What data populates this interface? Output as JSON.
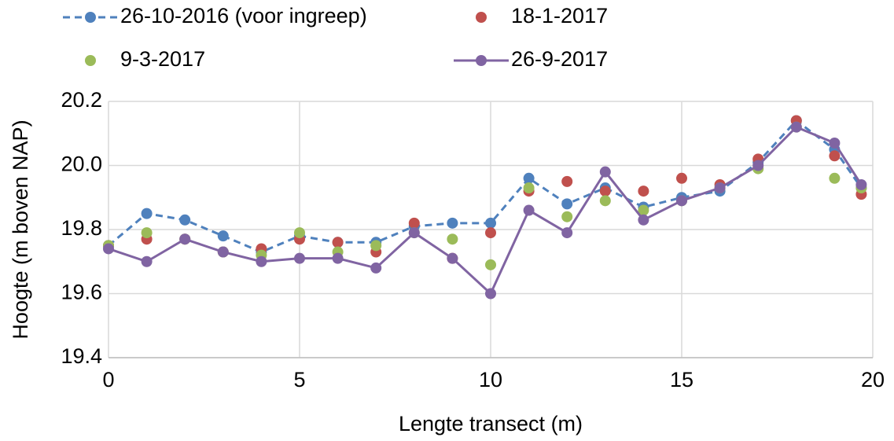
{
  "chart_data": {
    "type": "line",
    "xlabel": "Lengte transect (m)",
    "ylabel": "Hoogte (m boven NAP)",
    "x": [
      0,
      1,
      2,
      3,
      4,
      5,
      6,
      7,
      8,
      9,
      10,
      11,
      12,
      13,
      14,
      15,
      16,
      17,
      18,
      19,
      19.7
    ],
    "series": [
      {
        "name": "26-10-2016 (voor ingreep)",
        "color": "#4f81bd",
        "line": "dashed",
        "marker": true,
        "values": [
          19.75,
          19.85,
          19.83,
          19.78,
          19.73,
          19.78,
          19.76,
          19.76,
          19.81,
          19.82,
          19.82,
          19.96,
          19.88,
          19.93,
          19.87,
          19.9,
          19.92,
          20.01,
          20.14,
          20.05,
          19.93
        ]
      },
      {
        "name": "18-1-2017",
        "color": "#c0504d",
        "line": "none",
        "marker": true,
        "values": [
          19.75,
          19.77,
          19.77,
          19.73,
          19.74,
          19.77,
          19.76,
          19.73,
          19.82,
          19.71,
          19.79,
          19.92,
          19.95,
          19.92,
          19.92,
          19.96,
          19.94,
          20.02,
          20.14,
          20.03,
          19.91
        ]
      },
      {
        "name": "9-3-2017",
        "color": "#9bbb59",
        "line": "none",
        "marker": true,
        "values": [
          19.75,
          19.79,
          19.77,
          19.73,
          19.72,
          19.79,
          19.73,
          19.75,
          19.79,
          19.77,
          19.69,
          19.93,
          19.84,
          19.89,
          19.86,
          19.89,
          19.93,
          19.99,
          20.12,
          19.96,
          19.93
        ]
      },
      {
        "name": "26-9-2017",
        "color": "#8064a2",
        "line": "solid",
        "marker": true,
        "values": [
          19.74,
          19.7,
          19.77,
          19.73,
          19.7,
          19.71,
          19.71,
          19.68,
          19.79,
          19.71,
          19.6,
          19.86,
          19.79,
          19.98,
          19.83,
          19.89,
          19.93,
          20.0,
          20.12,
          20.07,
          19.94
        ]
      }
    ],
    "xlim": [
      0,
      20
    ],
    "xticks": [
      0,
      5,
      10,
      15,
      20
    ],
    "ylim": [
      19.4,
      20.2
    ],
    "yticks": [
      19.4,
      19.6,
      19.8,
      {
        "value": 20.0,
        "label": "20.0"
      },
      20.2
    ],
    "grid": true
  }
}
